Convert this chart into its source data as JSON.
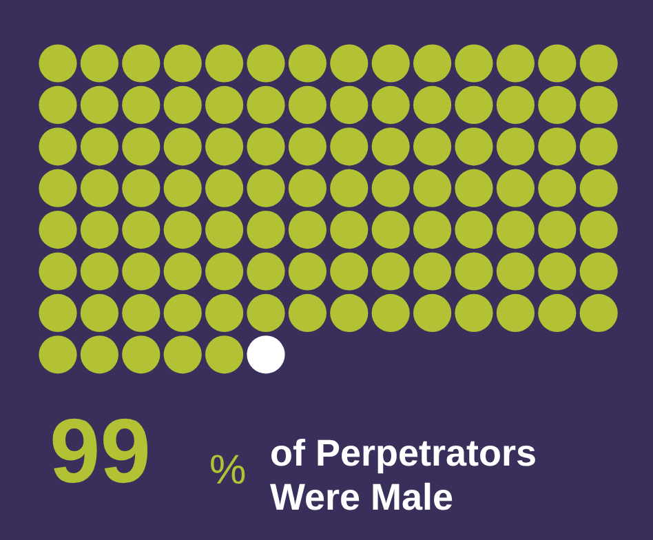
{
  "chart_data": {
    "type": "other",
    "values": [
      99
    ],
    "colors": [
      "#b3c234"
    ],
    "data_labels": true,
    "annotations": [
      "%",
      "of Perpetrators Were Male"
    ]
  }
}
